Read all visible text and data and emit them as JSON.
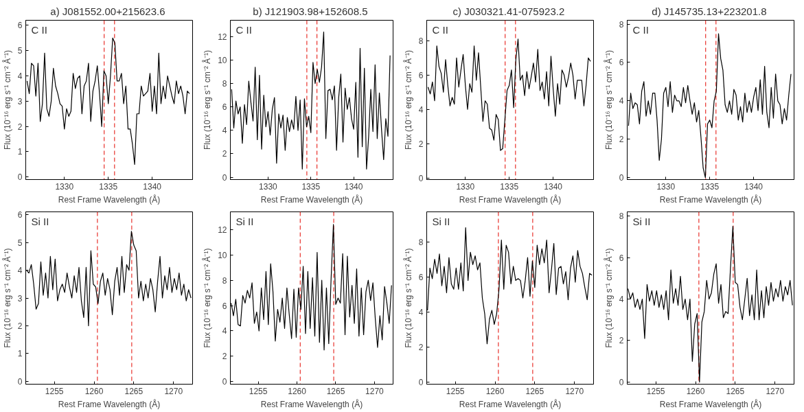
{
  "chart_data": [
    {
      "type": "line",
      "title": "a)  J081552.00+215623.6",
      "xlabel": "Rest Frame Wavelength (Å)",
      "ylabel": "Flux (10⁻¹⁶ erg s⁻¹ cm⁻² Å⁻¹)",
      "annotations": [
        "C II"
      ],
      "color": "#000000",
      "xlim": [
        1325.6,
        1344.6
      ],
      "ylim": [
        -0.1,
        6.2
      ],
      "xticks": [
        1330,
        1335,
        1340
      ],
      "yticks": [
        0,
        1,
        2,
        3,
        4,
        5,
        6
      ],
      "x": [
        1325.75,
        1326,
        1326.25,
        1326.5,
        1326.75,
        1327,
        1327.25,
        1327.5,
        1327.75,
        1328,
        1328.25,
        1328.5,
        1328.75,
        1329,
        1329.25,
        1329.5,
        1329.75,
        1330,
        1330.25,
        1330.5,
        1330.75,
        1331,
        1331.25,
        1331.5,
        1331.75,
        1332,
        1332.25,
        1332.5,
        1332.75,
        1333,
        1333.25,
        1333.5,
        1333.75,
        1334,
        1334.25,
        1334.5,
        1334.75,
        1335,
        1335.25,
        1335.5,
        1335.75,
        1336,
        1336.25,
        1336.5,
        1336.75,
        1337,
        1337.25,
        1337.5,
        1337.75,
        1338,
        1338.25,
        1338.5,
        1338.75,
        1339,
        1339.25,
        1339.5,
        1339.75,
        1340,
        1340.25,
        1340.5,
        1340.75,
        1341,
        1341.25,
        1341.5,
        1341.75,
        1342,
        1342.25,
        1342.5,
        1342.75,
        1343,
        1343.25,
        1343.5,
        1343.75,
        1344,
        1344.25
      ],
      "values": [
        3.8,
        3.3,
        4.5,
        4.4,
        3.2,
        4.5,
        2.2,
        2.9,
        4.9,
        2.7,
        2.4,
        3.0,
        4.3,
        3.6,
        3.3,
        2.9,
        2.8,
        1.9,
        2.7,
        2.4,
        2.6,
        4.1,
        3.5,
        3.9,
        4.0,
        2.5,
        3.6,
        3.8,
        4.5,
        2.2,
        3.4,
        3.8,
        4.4,
        3.3,
        2.0,
        4.2,
        4.0,
        2.9,
        4.0,
        5.5,
        5.3,
        3.8,
        3.8,
        4.1,
        2.9,
        3.6,
        1.9,
        1.9,
        1.3,
        0.5,
        2.5,
        2.5,
        3.6,
        3.2,
        3.3,
        3.4,
        4.1,
        2.6,
        3.6,
        2.5,
        4.9,
        2.9,
        3.6,
        3.1,
        4.0,
        3.6,
        3.2,
        2.9,
        3.8,
        3.3,
        3.6,
        3.2,
        2.5,
        3.4,
        3.3
      ],
      "ref_lines": [
        {
          "axis": "x",
          "value": 1334.53,
          "color": "#e8302a",
          "line_style": "dashed"
        },
        {
          "axis": "x",
          "value": 1335.71,
          "color": "#e8302a",
          "line_style": "dashed"
        }
      ]
    },
    {
      "type": "line",
      "title": "b)  J121903.98+152608.5",
      "xlabel": "Rest Frame Wavelength (Å)",
      "ylabel": "Flux (10⁻¹⁶ erg s⁻¹ cm⁻² Å⁻¹)",
      "annotations": [
        "C II"
      ],
      "color": "#000000",
      "xlim": [
        1325.6,
        1344.6
      ],
      "ylim": [
        -0.2,
        13.4
      ],
      "xticks": [
        1330,
        1335,
        1340
      ],
      "yticks": [
        0,
        2,
        4,
        6,
        8,
        10,
        12
      ],
      "x": [
        1325.75,
        1326,
        1326.25,
        1326.5,
        1326.75,
        1327,
        1327.25,
        1327.5,
        1327.75,
        1328,
        1328.25,
        1328.5,
        1328.75,
        1329,
        1329.25,
        1329.5,
        1329.75,
        1330,
        1330.25,
        1330.5,
        1330.75,
        1331,
        1331.25,
        1331.5,
        1331.75,
        1332,
        1332.25,
        1332.5,
        1332.75,
        1333,
        1333.25,
        1333.5,
        1333.75,
        1334,
        1334.25,
        1334.5,
        1334.75,
        1335,
        1335.25,
        1335.5,
        1335.75,
        1336,
        1336.25,
        1336.5,
        1336.75,
        1337,
        1337.25,
        1337.5,
        1337.75,
        1338,
        1338.25,
        1338.5,
        1338.75,
        1339,
        1339.25,
        1339.5,
        1339.75,
        1340,
        1340.25,
        1340.5,
        1340.75,
        1341,
        1341.25,
        1341.5,
        1341.75,
        1342,
        1342.25,
        1342.5,
        1342.75,
        1343,
        1343.25,
        1343.5,
        1343.75,
        1344,
        1344.25
      ],
      "values": [
        7.5,
        4.2,
        6.5,
        5.4,
        6.0,
        2.9,
        6.2,
        4.5,
        8.2,
        6.4,
        4.8,
        9.4,
        3.2,
        8.7,
        2.4,
        7.0,
        4.3,
        5.6,
        3.6,
        5.8,
        6.8,
        1.2,
        5.4,
        4.2,
        5.3,
        2.3,
        5.1,
        3.9,
        4.9,
        4.1,
        6.9,
        4.0,
        6.6,
        0.7,
        6.7,
        4.3,
        5.2,
        3.8,
        9.8,
        8.0,
        9.2,
        8.1,
        9.4,
        12.4,
        3.3,
        7.4,
        7.5,
        6.6,
        7.8,
        2.3,
        6.8,
        8.8,
        3.0,
        7.6,
        5.8,
        6.8,
        5.0,
        4.1,
        8.1,
        1.7,
        11.0,
        2.6,
        9.3,
        0.7,
        3.5,
        7.5,
        3.9,
        9.6,
        3.3,
        7.2,
        4.1,
        1.5,
        5.0,
        3.5,
        10.4
      ],
      "ref_lines": [
        {
          "axis": "x",
          "value": 1334.53,
          "color": "#e8302a",
          "line_style": "dashed"
        },
        {
          "axis": "x",
          "value": 1335.71,
          "color": "#e8302a",
          "line_style": "dashed"
        }
      ]
    },
    {
      "type": "line",
      "title": "c)  J030321.41-075923.2",
      "xlabel": "Rest Frame Wavelength (Å)",
      "ylabel": "Flux (10⁻¹⁶ erg s⁻¹ cm⁻² Å⁻¹)",
      "annotations": [
        "C II"
      ],
      "color": "#000000",
      "xlim": [
        1325.6,
        1344.6
      ],
      "ylim": [
        -0.1,
        9.2
      ],
      "xticks": [
        1330,
        1335,
        1340
      ],
      "yticks": [
        0,
        2,
        4,
        6,
        8
      ],
      "x": [
        1325.75,
        1326,
        1326.25,
        1326.5,
        1326.75,
        1327,
        1327.25,
        1327.5,
        1327.75,
        1328,
        1328.25,
        1328.5,
        1328.75,
        1329,
        1329.25,
        1329.5,
        1329.75,
        1330,
        1330.25,
        1330.5,
        1330.75,
        1331,
        1331.25,
        1331.5,
        1331.75,
        1332,
        1332.25,
        1332.5,
        1332.75,
        1333,
        1333.25,
        1333.5,
        1333.75,
        1334,
        1334.25,
        1334.5,
        1334.75,
        1335,
        1335.25,
        1335.5,
        1335.75,
        1336,
        1336.25,
        1336.5,
        1336.75,
        1337,
        1337.25,
        1337.5,
        1337.75,
        1338,
        1338.25,
        1338.5,
        1338.75,
        1339,
        1339.25,
        1339.5,
        1339.75,
        1340,
        1340.25,
        1340.5,
        1340.75,
        1341,
        1341.25,
        1341.5,
        1341.75,
        1342,
        1342.25,
        1342.5,
        1342.75,
        1343,
        1343.25,
        1343.5,
        1343.75,
        1344,
        1344.25
      ],
      "values": [
        5.3,
        4.9,
        5.6,
        4.5,
        7.7,
        6.5,
        6.1,
        5.0,
        6.9,
        5.4,
        4.2,
        4.7,
        4.3,
        7.0,
        5.3,
        6.3,
        7.2,
        5.4,
        4.0,
        5.5,
        5.0,
        7.7,
        5.7,
        7.3,
        5.3,
        3.3,
        4.5,
        4.3,
        2.9,
        2.8,
        2.2,
        3.7,
        3.4,
        1.6,
        1.7,
        3.4,
        5.1,
        5.4,
        6.3,
        4.1,
        6.9,
        8.1,
        5.7,
        6.0,
        4.8,
        6.2,
        5.2,
        5.9,
        6.7,
        5.6,
        7.5,
        5.1,
        5.6,
        4.6,
        6.2,
        4.2,
        7.1,
        5.2,
        3.6,
        5.5,
        4.3,
        6.3,
        6.0,
        5.3,
        5.9,
        6.7,
        6.0,
        4.6,
        5.7,
        5.7,
        5.7,
        4.2,
        5.4,
        7.0,
        6.8
      ],
      "ref_lines": [
        {
          "axis": "x",
          "value": 1334.53,
          "color": "#e8302a",
          "line_style": "dashed"
        },
        {
          "axis": "x",
          "value": 1335.71,
          "color": "#e8302a",
          "line_style": "dashed"
        }
      ]
    },
    {
      "type": "line",
      "title": "d)  J145735.13+223201.8",
      "xlabel": "Rest Frame Wavelength (Å)",
      "ylabel": "Flux (10⁻¹⁶ erg s⁻¹ cm⁻² Å⁻¹)",
      "annotations": [
        "C II"
      ],
      "color": "#000000",
      "xlim": [
        1325.6,
        1344.6
      ],
      "ylim": [
        -0.1,
        8.2
      ],
      "xticks": [
        1330,
        1335,
        1340
      ],
      "yticks": [
        0,
        2,
        4,
        6,
        8
      ],
      "x": [
        1325.75,
        1326,
        1326.25,
        1326.5,
        1326.75,
        1327,
        1327.25,
        1327.5,
        1327.75,
        1328,
        1328.25,
        1328.5,
        1328.75,
        1329,
        1329.25,
        1329.5,
        1329.75,
        1330,
        1330.25,
        1330.5,
        1330.75,
        1331,
        1331.25,
        1331.5,
        1331.75,
        1332,
        1332.25,
        1332.5,
        1332.75,
        1333,
        1333.25,
        1333.5,
        1333.75,
        1334,
        1334.25,
        1334.5,
        1334.75,
        1335,
        1335.25,
        1335.5,
        1335.75,
        1336,
        1336.25,
        1336.5,
        1336.75,
        1337,
        1337.25,
        1337.5,
        1337.75,
        1338,
        1338.25,
        1338.5,
        1338.75,
        1339,
        1339.25,
        1339.5,
        1339.75,
        1340,
        1340.25,
        1340.5,
        1340.75,
        1341,
        1341.25,
        1341.5,
        1341.75,
        1342,
        1342.25,
        1342.5,
        1342.75,
        1343,
        1343.25,
        1343.5,
        1343.75,
        1344,
        1344.25
      ],
      "values": [
        2.7,
        4.4,
        3.6,
        3.9,
        3.8,
        2.8,
        4.5,
        5.0,
        3.2,
        4.0,
        3.3,
        4.4,
        4.4,
        3.0,
        0.9,
        2.0,
        4.4,
        4.7,
        3.7,
        5.0,
        3.4,
        4.3,
        4.0,
        4.0,
        3.7,
        4.7,
        3.9,
        4.8,
        4.0,
        3.3,
        3.9,
        2.9,
        3.5,
        2.1,
        0.5,
        0.0,
        2.8,
        3.0,
        2.6,
        4.0,
        4.5,
        7.5,
        6.2,
        5.6,
        3.8,
        3.4,
        4.0,
        3.3,
        4.6,
        4.3,
        3.0,
        3.7,
        2.9,
        4.4,
        3.4,
        4.0,
        3.4,
        4.2,
        4.7,
        3.5,
        5.1,
        3.3,
        5.8,
        3.4,
        2.6,
        4.7,
        3.1,
        5.4,
        4.0,
        3.8,
        2.8,
        3.6,
        3.0,
        4.3,
        5.4
      ],
      "ref_lines": [
        {
          "axis": "x",
          "value": 1334.53,
          "color": "#e8302a",
          "line_style": "dashed"
        },
        {
          "axis": "x",
          "value": 1335.71,
          "color": "#e8302a",
          "line_style": "dashed"
        }
      ]
    },
    {
      "type": "line",
      "xlabel": "Rest Frame Wavelength (Å)",
      "ylabel": "Flux (10⁻¹⁶ erg s⁻¹ cm⁻² Å⁻¹)",
      "annotations": [
        "Si II"
      ],
      "color": "#000000",
      "xlim": [
        1251.4,
        1272.4
      ],
      "ylim": [
        -0.1,
        6.1
      ],
      "xticks": [
        1255,
        1260,
        1265,
        1270
      ],
      "yticks": [
        0,
        1,
        2,
        3,
        4,
        5,
        6
      ],
      "x": [
        1251.5,
        1251.8,
        1252.1,
        1252.4,
        1252.7,
        1253,
        1253.3,
        1253.6,
        1253.9,
        1254.2,
        1254.5,
        1254.8,
        1255.1,
        1255.4,
        1255.7,
        1256,
        1256.3,
        1256.6,
        1256.9,
        1257.2,
        1257.5,
        1257.8,
        1258.1,
        1258.4,
        1258.7,
        1259,
        1259.3,
        1259.6,
        1259.9,
        1260.2,
        1260.5,
        1260.8,
        1261.1,
        1261.4,
        1261.7,
        1262,
        1262.3,
        1262.6,
        1262.9,
        1263.2,
        1263.5,
        1263.8,
        1264.1,
        1264.4,
        1264.7,
        1265,
        1265.3,
        1265.6,
        1265.9,
        1266.2,
        1266.5,
        1266.8,
        1267.1,
        1267.4,
        1267.7,
        1268,
        1268.3,
        1268.6,
        1268.9,
        1269.2,
        1269.5,
        1269.8,
        1270.1,
        1270.4,
        1270.7,
        1271,
        1271.3,
        1271.6,
        1271.9,
        1272.2
      ],
      "values": [
        4.0,
        3.9,
        4.2,
        3.5,
        2.6,
        2.8,
        4.3,
        3.1,
        3.9,
        3.0,
        4.5,
        3.3,
        4.4,
        2.9,
        3.3,
        3.5,
        3.2,
        3.9,
        3.4,
        3.0,
        3.8,
        3.2,
        4.1,
        2.9,
        2.3,
        4.1,
        2.0,
        4.7,
        3.5,
        3.4,
        2.8,
        3.6,
        3.9,
        3.1,
        3.7,
        3.3,
        2.4,
        3.6,
        4.1,
        3.1,
        4.5,
        3.2,
        4.2,
        4.0,
        5.4,
        4.9,
        4.7,
        3.0,
        3.6,
        2.9,
        3.5,
        3.0,
        3.7,
        3.3,
        2.5,
        3.6,
        4.5,
        3.0,
        3.8,
        3.3,
        4.1,
        3.2,
        3.7,
        3.3,
        3.9,
        3.1,
        3.5,
        2.9,
        3.3,
        3.0
      ],
      "ref_lines": [
        {
          "axis": "x",
          "value": 1260.42,
          "color": "#e8302a",
          "line_style": "dashed"
        },
        {
          "axis": "x",
          "value": 1264.74,
          "color": "#e8302a",
          "line_style": "dashed"
        }
      ]
    },
    {
      "type": "line",
      "xlabel": "Rest Frame Wavelength (Å)",
      "ylabel": "Flux (10⁻¹⁶ erg s⁻¹ cm⁻² Å⁻¹)",
      "annotations": [
        "Si II"
      ],
      "color": "#000000",
      "xlim": [
        1251.4,
        1272.4
      ],
      "ylim": [
        -0.2,
        13.4
      ],
      "xticks": [
        1255,
        1260,
        1265,
        1270
      ],
      "yticks": [
        0,
        2,
        4,
        6,
        8,
        10,
        12
      ],
      "x": [
        1251.5,
        1251.8,
        1252.1,
        1252.4,
        1252.7,
        1253,
        1253.3,
        1253.6,
        1253.9,
        1254.2,
        1254.5,
        1254.8,
        1255.1,
        1255.4,
        1255.7,
        1256,
        1256.3,
        1256.6,
        1256.9,
        1257.2,
        1257.5,
        1257.8,
        1258.1,
        1258.4,
        1258.7,
        1259,
        1259.3,
        1259.6,
        1259.9,
        1260.2,
        1260.5,
        1260.8,
        1261.1,
        1261.4,
        1261.7,
        1262,
        1262.3,
        1262.6,
        1262.9,
        1263.2,
        1263.5,
        1263.8,
        1264.1,
        1264.4,
        1264.7,
        1265,
        1265.3,
        1265.6,
        1265.9,
        1266.2,
        1266.5,
        1266.8,
        1267.1,
        1267.4,
        1267.7,
        1268,
        1268.3,
        1268.6,
        1268.9,
        1269.2,
        1269.5,
        1269.8,
        1270.1,
        1270.4,
        1270.7,
        1271,
        1271.3,
        1271.6,
        1271.9,
        1272.2
      ],
      "values": [
        6.2,
        5.2,
        6.5,
        4.5,
        4.4,
        6.8,
        6.2,
        7.2,
        6.6,
        7.8,
        4.6,
        5.5,
        4.0,
        7.4,
        4.9,
        8.7,
        4.5,
        9.3,
        7.1,
        3.2,
        5.7,
        4.7,
        6.6,
        4.2,
        7.4,
        5.3,
        3.4,
        7.3,
        3.5,
        7.4,
        5.7,
        9.1,
        3.8,
        8.7,
        4.2,
        8.2,
        3.6,
        10.2,
        3.1,
        8.0,
        2.5,
        7.4,
        3.0,
        8.1,
        12.4,
        6.1,
        6.6,
        6.2,
        10.1,
        3.7,
        9.9,
        5.1,
        7.6,
        4.6,
        8.9,
        3.6,
        7.4,
        3.7,
        7.1,
        8.0,
        6.4,
        7.8,
        5.0,
        2.7,
        5.2,
        3.3,
        7.5,
        6.2,
        4.6,
        7.6
      ],
      "ref_lines": [
        {
          "axis": "x",
          "value": 1260.42,
          "color": "#e8302a",
          "line_style": "dashed"
        },
        {
          "axis": "x",
          "value": 1264.74,
          "color": "#e8302a",
          "line_style": "dashed"
        }
      ]
    },
    {
      "type": "line",
      "xlabel": "Rest Frame Wavelength (Å)",
      "ylabel": "Flux (10⁻¹⁶ erg s⁻¹ cm⁻² Å⁻¹)",
      "annotations": [
        "Si II"
      ],
      "color": "#000000",
      "xlim": [
        1251.4,
        1272.4
      ],
      "ylim": [
        -0.1,
        9.7
      ],
      "xticks": [
        1255,
        1260,
        1265,
        1270
      ],
      "yticks": [
        0,
        2,
        4,
        6,
        8
      ],
      "x": [
        1251.5,
        1251.8,
        1252.1,
        1252.4,
        1252.7,
        1253,
        1253.3,
        1253.6,
        1253.9,
        1254.2,
        1254.5,
        1254.8,
        1255.1,
        1255.4,
        1255.7,
        1256,
        1256.3,
        1256.6,
        1256.9,
        1257.2,
        1257.5,
        1257.8,
        1258.1,
        1258.4,
        1258.7,
        1259,
        1259.3,
        1259.6,
        1259.9,
        1260.2,
        1260.5,
        1260.8,
        1261.1,
        1261.4,
        1261.7,
        1262,
        1262.3,
        1262.6,
        1262.9,
        1263.2,
        1263.5,
        1263.8,
        1264.1,
        1264.4,
        1264.7,
        1265,
        1265.3,
        1265.6,
        1265.9,
        1266.2,
        1266.5,
        1266.8,
        1267.1,
        1267.4,
        1267.7,
        1268,
        1268.3,
        1268.6,
        1268.9,
        1269.2,
        1269.5,
        1269.8,
        1270.1,
        1270.4,
        1270.7,
        1271,
        1271.3,
        1271.6,
        1271.9,
        1272.2
      ],
      "values": [
        4.1,
        6.5,
        5.9,
        7.0,
        6.2,
        7.3,
        5.5,
        6.6,
        5.1,
        7.1,
        5.6,
        5.3,
        6.5,
        5.3,
        6.8,
        5.2,
        8.8,
        5.8,
        7.4,
        6.7,
        7.2,
        6.4,
        6.8,
        4.8,
        3.9,
        2.2,
        3.6,
        4.1,
        3.3,
        3.9,
        5.3,
        8.1,
        5.3,
        7.8,
        7.4,
        5.6,
        6.6,
        5.8,
        5.9,
        5.8,
        4.8,
        5.8,
        7.1,
        4.9,
        6.9,
        5.4,
        7.8,
        6.7,
        7.6,
        6.8,
        8.1,
        5.1,
        6.4,
        7.9,
        5.0,
        6.5,
        6.6,
        5.6,
        6.3,
        4.7,
        6.5,
        7.2,
        5.7,
        7.5,
        6.6,
        6.2,
        5.4,
        4.7,
        6.2,
        6.1
      ],
      "ref_lines": [
        {
          "axis": "x",
          "value": 1260.42,
          "color": "#e8302a",
          "line_style": "dashed"
        },
        {
          "axis": "x",
          "value": 1264.74,
          "color": "#e8302a",
          "line_style": "dashed"
        }
      ]
    },
    {
      "type": "line",
      "xlabel": "Rest Frame Wavelength (Å)",
      "ylabel": "Flux (10⁻¹⁶ erg s⁻¹ cm⁻² Å⁻¹)",
      "annotations": [
        "Si II"
      ],
      "color": "#000000",
      "xlim": [
        1251.4,
        1272.4
      ],
      "ylim": [
        -0.1,
        8.2
      ],
      "xticks": [
        1255,
        1260,
        1265,
        1270
      ],
      "yticks": [
        0,
        2,
        4,
        6,
        8
      ],
      "x": [
        1251.5,
        1251.8,
        1252.1,
        1252.4,
        1252.7,
        1253,
        1253.3,
        1253.6,
        1253.9,
        1254.2,
        1254.5,
        1254.8,
        1255.1,
        1255.4,
        1255.7,
        1256,
        1256.3,
        1256.6,
        1256.9,
        1257.2,
        1257.5,
        1257.8,
        1258.1,
        1258.4,
        1258.7,
        1259,
        1259.3,
        1259.6,
        1259.9,
        1260.2,
        1260.5,
        1260.8,
        1261.1,
        1261.4,
        1261.7,
        1262,
        1262.3,
        1262.6,
        1262.9,
        1263.2,
        1263.5,
        1263.8,
        1264.1,
        1264.4,
        1264.7,
        1265,
        1265.3,
        1265.6,
        1265.9,
        1266.2,
        1266.5,
        1266.8,
        1267.1,
        1267.4,
        1267.7,
        1268,
        1268.3,
        1268.6,
        1268.9,
        1269.2,
        1269.5,
        1269.8,
        1270.1,
        1270.4,
        1270.7,
        1271,
        1271.3,
        1271.6,
        1271.9,
        1272.2
      ],
      "values": [
        4.5,
        4.0,
        4.3,
        3.6,
        4.0,
        3.5,
        4.0,
        2.1,
        4.7,
        3.9,
        4.4,
        3.7,
        4.4,
        3.6,
        4.2,
        3.5,
        4.4,
        3.0,
        5.4,
        3.8,
        4.5,
        3.7,
        5.1,
        3.5,
        4.0,
        3.0,
        4.0,
        1.0,
        2.8,
        3.3,
        0.0,
        2.9,
        3.4,
        4.9,
        4.0,
        4.3,
        5.2,
        5.7,
        3.8,
        4.7,
        3.1,
        3.4,
        3.3,
        5.5,
        7.5,
        4.8,
        4.7,
        3.6,
        3.0,
        4.0,
        5.0,
        3.2,
        4.2,
        3.0,
        5.4,
        3.0,
        4.4,
        3.1,
        4.6,
        3.7,
        4.8,
        3.9,
        4.5,
        4.1,
        4.9,
        3.9,
        4.6,
        4.2,
        4.9,
        3.7
      ],
      "ref_lines": [
        {
          "axis": "x",
          "value": 1260.42,
          "color": "#e8302a",
          "line_style": "dashed"
        },
        {
          "axis": "x",
          "value": 1264.74,
          "color": "#e8302a",
          "line_style": "dashed"
        }
      ]
    }
  ]
}
